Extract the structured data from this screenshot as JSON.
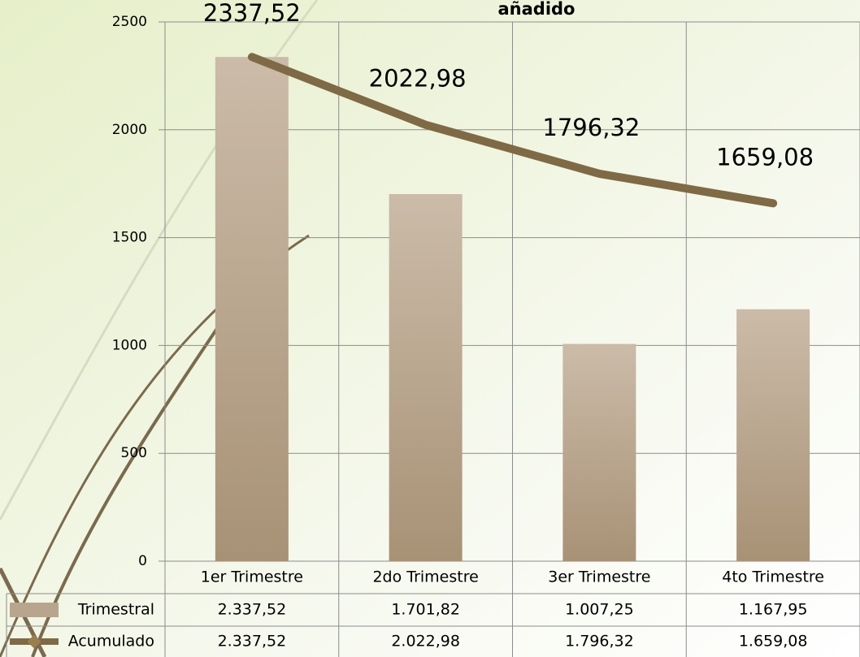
{
  "chart_data": {
    "type": "bar-line",
    "title": "añadido",
    "categories": [
      "1er Trimestre",
      "2do Trimestre",
      "3er Trimestre",
      "4to Trimestre"
    ],
    "series": [
      {
        "name": "Trimestral",
        "type": "bar",
        "color": "#b8a58d",
        "values": [
          2337.52,
          1701.82,
          1007.25,
          1167.95
        ],
        "table_labels": [
          "2.337,52",
          "1.701,82",
          "1.007,25",
          "1.167,95"
        ]
      },
      {
        "name": "Acumulado",
        "type": "line",
        "color": "#7f6a45",
        "values": [
          2337.52,
          2022.98,
          1796.32,
          1659.08
        ],
        "value_labels": [
          "2337,52",
          "2022,98",
          "1796,32",
          "1659,08"
        ],
        "table_labels": [
          "2.337,52",
          "2.022,98",
          "1.796,32",
          "1.659,08"
        ]
      }
    ],
    "ylim": [
      0,
      2500
    ],
    "yticks": [
      0,
      500,
      1000,
      1500,
      2000,
      2500
    ],
    "grid": true
  }
}
